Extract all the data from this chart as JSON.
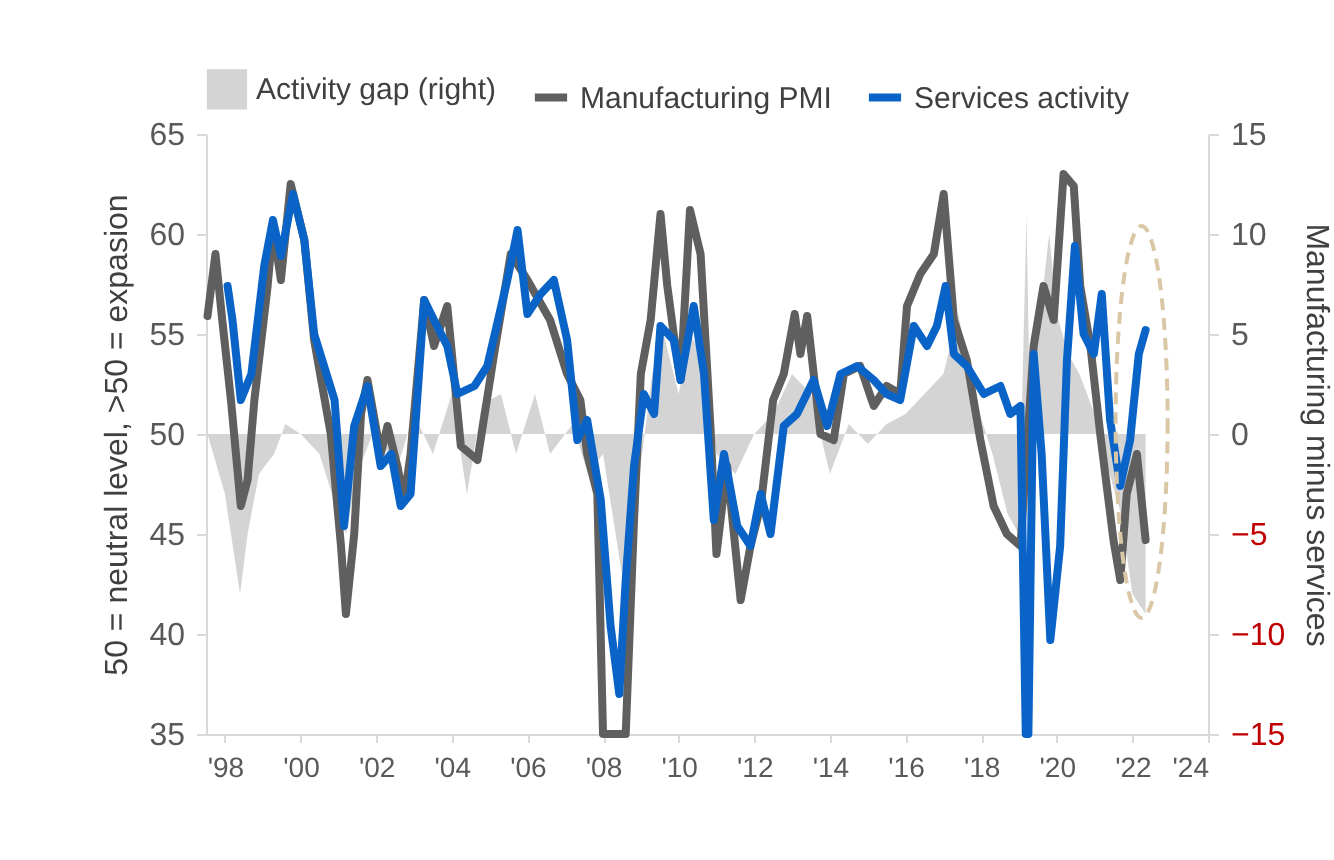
{
  "chart_data": {
    "type": "line",
    "ylabel": "50 = neutral level, >50 = expasion",
    "y2label": "Manufacturing minus services",
    "legend": "top",
    "grid": false,
    "xlim": [
      1997.5,
      2024.0
    ],
    "xticks": [
      {
        "value": 1998,
        "label": "'98"
      },
      {
        "value": 2000,
        "label": "'00"
      },
      {
        "value": 2002,
        "label": "'02"
      },
      {
        "value": 2004,
        "label": "'04"
      },
      {
        "value": 2006,
        "label": "'06"
      },
      {
        "value": 2008,
        "label": "'08"
      },
      {
        "value": 2010,
        "label": "'10"
      },
      {
        "value": 2012,
        "label": "'12"
      },
      {
        "value": 2014,
        "label": "'14"
      },
      {
        "value": 2016,
        "label": "'16"
      },
      {
        "value": 2018,
        "label": "'18"
      },
      {
        "value": 2020,
        "label": "'20"
      },
      {
        "value": 2022,
        "label": "'22"
      },
      {
        "value": 2024,
        "label": "'24"
      }
    ],
    "ylim": [
      35,
      65
    ],
    "yticks": [
      35,
      40,
      45,
      50,
      55,
      60,
      65
    ],
    "y2lim": [
      -15,
      15
    ],
    "y2ticks": [
      -15,
      -10,
      -5,
      0,
      5,
      10,
      15
    ],
    "series": [
      {
        "name": "Activity gap (right)",
        "type": "area",
        "axis": "y2",
        "color": "#d4d4d4",
        "x": [
          1997.54,
          1998.0,
          1998.4,
          1998.6,
          1998.9,
          1999.3,
          1999.6,
          2000.0,
          2000.5,
          2001.0,
          2001.2,
          2001.5,
          2002.0,
          2002.5,
          2003.0,
          2003.5,
          2004.0,
          2004.4,
          2004.8,
          2005.3,
          2005.7,
          2006.2,
          2006.6,
          2007.2,
          2007.6,
          2008.0,
          2008.5,
          2008.9,
          2009.3,
          2009.6,
          2010.0,
          2010.3,
          2010.6,
          2011.0,
          2011.5,
          2012.0,
          2012.5,
          2013.0,
          2013.5,
          2014.0,
          2014.5,
          2015.0,
          2015.5,
          2016.0,
          2016.5,
          2017.0,
          2017.4,
          2017.8,
          2018.3,
          2018.7,
          2019.0,
          2019.2,
          2019.3,
          2019.5,
          2019.8,
          2020.0,
          2020.3,
          2020.6,
          2021.0,
          2021.4,
          2021.7,
          2022.0,
          2022.35
        ],
        "values": [
          0,
          -3,
          -8,
          -5,
          -2,
          -1,
          0.5,
          0,
          -1,
          -4,
          -5,
          -2,
          0.5,
          -2,
          1,
          -1,
          2,
          -3,
          1.5,
          2,
          -1,
          2,
          -1,
          0.5,
          -2,
          -1,
          -7,
          -3,
          3,
          5,
          2,
          5,
          4,
          -1,
          -2,
          0,
          1,
          3,
          2,
          -2,
          0.5,
          -0.5,
          0.5,
          1,
          2,
          3,
          6,
          2,
          -1,
          -4,
          -5,
          11,
          0,
          5,
          10,
          6,
          4,
          3,
          1,
          -2,
          -4,
          -8,
          -9
        ]
      },
      {
        "name": "Manufacturing PMI",
        "color": "#5f5f5f",
        "x": [
          1997.54,
          1997.75,
          1997.93,
          1998.16,
          1998.42,
          1998.6,
          1998.78,
          1999.13,
          1999.27,
          1999.48,
          1999.74,
          2000.1,
          2000.36,
          2000.8,
          2001.07,
          2001.2,
          2001.42,
          2001.6,
          2001.77,
          2002.12,
          2002.3,
          2002.56,
          2002.74,
          2002.91,
          2003.27,
          2003.53,
          2003.88,
          2004.24,
          2004.68,
          2005.12,
          2005.56,
          2006.0,
          2006.6,
          2007.05,
          2007.4,
          2007.58,
          2007.85,
          2008.0,
          2008.6,
          2008.82,
          2009.0,
          2009.26,
          2009.52,
          2009.7,
          2009.87,
          2010.05,
          2010.3,
          2010.58,
          2010.84,
          2011.0,
          2011.28,
          2011.64,
          2011.9,
          2012.17,
          2012.5,
          2012.78,
          2013.07,
          2013.22,
          2013.4,
          2013.75,
          2014.1,
          2014.37,
          2014.8,
          2015.16,
          2015.5,
          2015.86,
          2016.04,
          2016.39,
          2016.75,
          2017.01,
          2017.28,
          2017.62,
          2017.98,
          2018.33,
          2018.68,
          2019.04,
          2019.39,
          2019.65,
          2019.92,
          2020.18,
          2020.45,
          2020.62,
          2020.89,
          2021.15,
          2021.5,
          2021.68,
          2021.85,
          2022.12,
          2022.35
        ],
        "values": [
          55.9,
          59.0,
          55.7,
          51.7,
          46.4,
          47.7,
          51.7,
          57.4,
          60.4,
          57.7,
          62.5,
          59.7,
          54.7,
          50,
          44.4,
          41.0,
          45.0,
          51.0,
          52.7,
          49.0,
          50.4,
          48.4,
          46.7,
          49.0,
          56.7,
          54.4,
          56.4,
          49.4,
          48.7,
          54.0,
          59.0,
          57.7,
          55.7,
          53.0,
          51.7,
          49,
          47,
          35,
          35,
          45.7,
          53.0,
          55.7,
          61.0,
          57.4,
          55.0,
          52.7,
          61.2,
          59.0,
          50.4,
          44.0,
          48.4,
          41.7,
          44.4,
          46.4,
          51.7,
          53.0,
          56.0,
          54.0,
          55.9,
          50.0,
          49.7,
          53.0,
          53.4,
          51.4,
          52.4,
          52.0,
          56.4,
          58.0,
          59.0,
          62.0,
          55.7,
          53.7,
          49.7,
          46.4,
          45.0,
          44.4,
          54.4,
          57.4,
          55.7,
          63.0,
          62.4,
          57.4,
          54.4,
          50,
          44.7,
          42.7,
          47.0,
          49.0,
          44.7
        ]
      },
      {
        "name": "Services activity",
        "color": "#0a64c8",
        "x": [
          1998.07,
          1998.2,
          1998.42,
          1998.7,
          1999.04,
          1999.27,
          1999.48,
          1999.8,
          2000.1,
          2000.36,
          2000.9,
          2001.15,
          2001.42,
          2001.77,
          2002.12,
          2002.4,
          2002.65,
          2002.91,
          2003.27,
          2003.53,
          2003.88,
          2004.15,
          2004.6,
          2004.94,
          2005.47,
          2005.74,
          2006.0,
          2006.35,
          2006.7,
          2007.05,
          2007.32,
          2007.58,
          2007.94,
          2008.2,
          2008.43,
          2008.6,
          2008.82,
          2009.08,
          2009.35,
          2009.52,
          2009.87,
          2010.05,
          2010.4,
          2010.67,
          2010.93,
          2011.2,
          2011.55,
          2011.9,
          2012.17,
          2012.43,
          2012.78,
          2013.13,
          2013.57,
          2013.93,
          2014.28,
          2014.72,
          2015.16,
          2015.5,
          2015.86,
          2016.22,
          2016.57,
          2016.83,
          2017.06,
          2017.28,
          2017.62,
          2018.07,
          2018.51,
          2018.77,
          2019.04,
          2019.18,
          2019.25,
          2019.39,
          2019.6,
          2019.83,
          2020.09,
          2020.27,
          2020.48,
          2020.71,
          2020.98,
          2021.19,
          2021.41,
          2021.68,
          2021.94,
          2022.17,
          2022.35
        ],
        "values": [
          57.4,
          55.7,
          51.7,
          53.0,
          58.4,
          60.7,
          58.9,
          62.0,
          59.7,
          55,
          51.7,
          45.4,
          50.4,
          52.4,
          48.4,
          49,
          46.4,
          47,
          56.7,
          55.7,
          54.4,
          52.0,
          52.4,
          53.4,
          57.7,
          60.2,
          56.0,
          57.0,
          57.7,
          54.7,
          49.7,
          50.7,
          46.7,
          40.4,
          37.0,
          42.7,
          48.4,
          52.0,
          51.0,
          55.4,
          54.7,
          52.7,
          56.4,
          53,
          45.7,
          49.0,
          45.4,
          44.4,
          47.0,
          45.0,
          50.4,
          51.0,
          52.7,
          50.4,
          53.0,
          53.4,
          52.7,
          52.0,
          51.7,
          55.4,
          54.4,
          55.4,
          57.4,
          54.0,
          53.4,
          52.0,
          52.4,
          51.0,
          51.4,
          35,
          35,
          54.0,
          49.0,
          39.7,
          44.4,
          53.7,
          59.4,
          55,
          54.0,
          57.0,
          50.7,
          47.4,
          49.7,
          54.0,
          55.2
        ]
      }
    ]
  }
}
